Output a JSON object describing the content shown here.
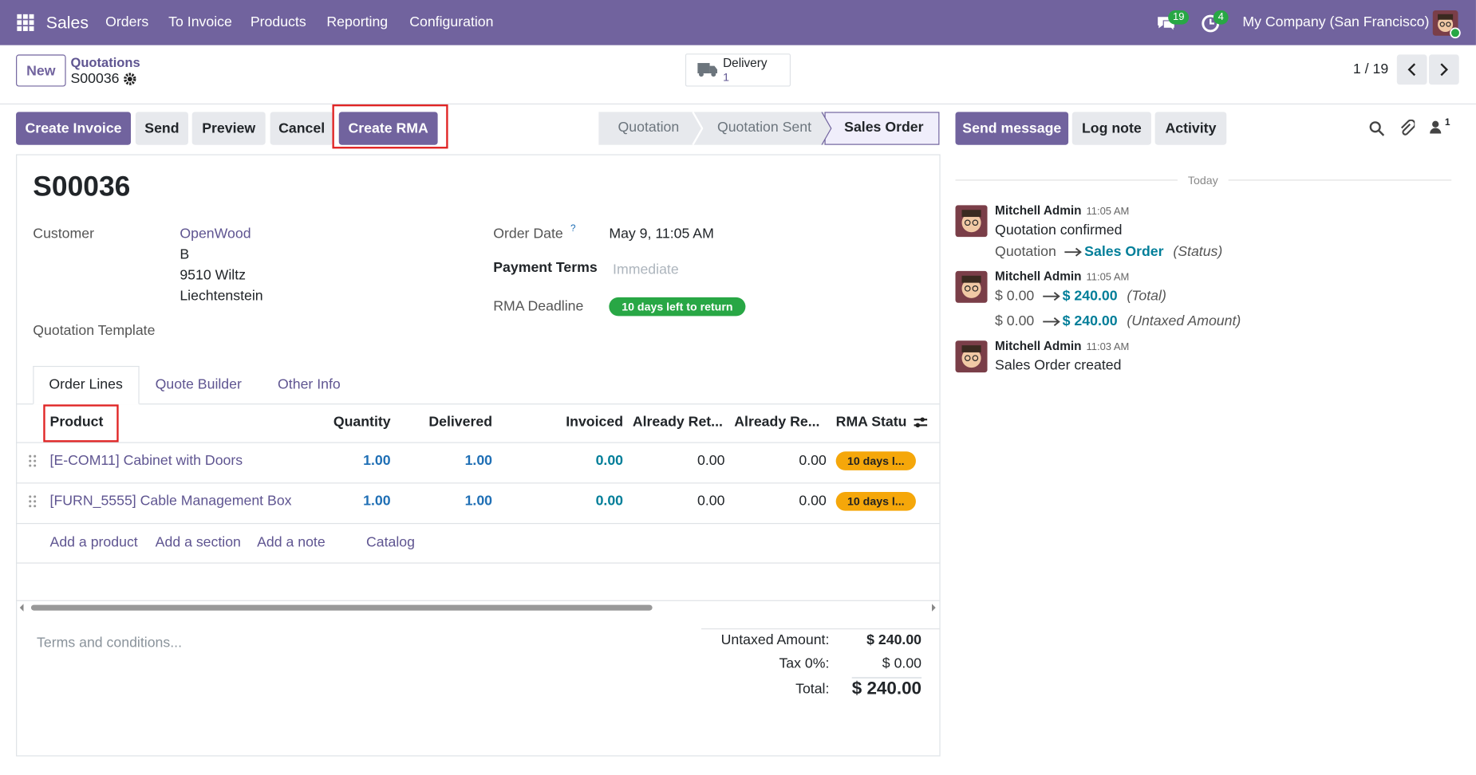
{
  "navbar": {
    "app": "Sales",
    "menu": [
      "Orders",
      "To Invoice",
      "Products",
      "Reporting",
      "Configuration"
    ],
    "messages_badge": "19",
    "activities_badge": "4",
    "company": "My Company (San Francisco)"
  },
  "control_panel": {
    "new_button": "New",
    "breadcrumb": "Quotations",
    "record": "S00036",
    "smart_button": {
      "label": "Delivery",
      "count": "1"
    },
    "pager": "1 / 19"
  },
  "actions": [
    "Create Invoice",
    "Send",
    "Preview",
    "Cancel",
    "Create RMA"
  ],
  "statusbar": [
    "Quotation",
    "Quotation Sent",
    "Sales Order"
  ],
  "form": {
    "name": "S00036",
    "customer_label": "Customer",
    "customer_name": "OpenWood",
    "customer_address": [
      "B",
      "9510 Wiltz",
      "Liechtenstein"
    ],
    "quotation_template_label": "Quotation Template",
    "order_date_label": "Order Date",
    "order_date_help": "?",
    "order_date": "May 9, 11:05 AM",
    "payment_terms_label": "Payment Terms",
    "payment_terms": "Immediate",
    "rma_deadline_label": "RMA Deadline",
    "rma_deadline": "10 days left to return"
  },
  "tabs": [
    "Order Lines",
    "Quote Builder",
    "Other Info"
  ],
  "table": {
    "columns": [
      "Product",
      "Quantity",
      "Delivered",
      "Invoiced",
      "Already Ret...",
      "Already Re...",
      "RMA Statu"
    ],
    "rows": [
      [
        "[E-COM11] Cabinet with Doors",
        "1.00",
        "1.00",
        "0.00",
        "0.00",
        "0.00",
        "10 days l..."
      ],
      [
        "[FURN_5555] Cable Management Box",
        "1.00",
        "1.00",
        "0.00",
        "0.00",
        "0.00",
        "10 days l..."
      ]
    ],
    "add_links": [
      "Add a product",
      "Add a section",
      "Add a note",
      "Catalog"
    ]
  },
  "terms_placeholder": "Terms and conditions...",
  "totals": [
    {
      "label": "Untaxed Amount:",
      "value": "$ 240.00"
    },
    {
      "label": "Tax 0%:",
      "value": "$ 0.00"
    },
    {
      "label": "Total:",
      "value": "$ 240.00"
    }
  ],
  "chatter": {
    "buttons": [
      "Send message",
      "Log note",
      "Activity"
    ],
    "follower_count": "1",
    "date_separator": "Today",
    "messages": [
      {
        "author": "Mitchell Admin",
        "time": "11:05 AM",
        "body": "Quotation confirmed",
        "tracking": [
          {
            "old": "Quotation",
            "new": "Sales Order",
            "field": "(Status)"
          }
        ]
      },
      {
        "author": "Mitchell Admin",
        "time": "11:05 AM",
        "tracking": [
          {
            "old": "$ 0.00",
            "new": "$ 240.00",
            "field": "(Total)"
          },
          {
            "old": "$ 0.00",
            "new": "$ 240.00",
            "field": "(Untaxed Amount)"
          }
        ]
      },
      {
        "author": "Mitchell Admin",
        "time": "11:03 AM",
        "body": "Sales Order created"
      }
    ]
  }
}
